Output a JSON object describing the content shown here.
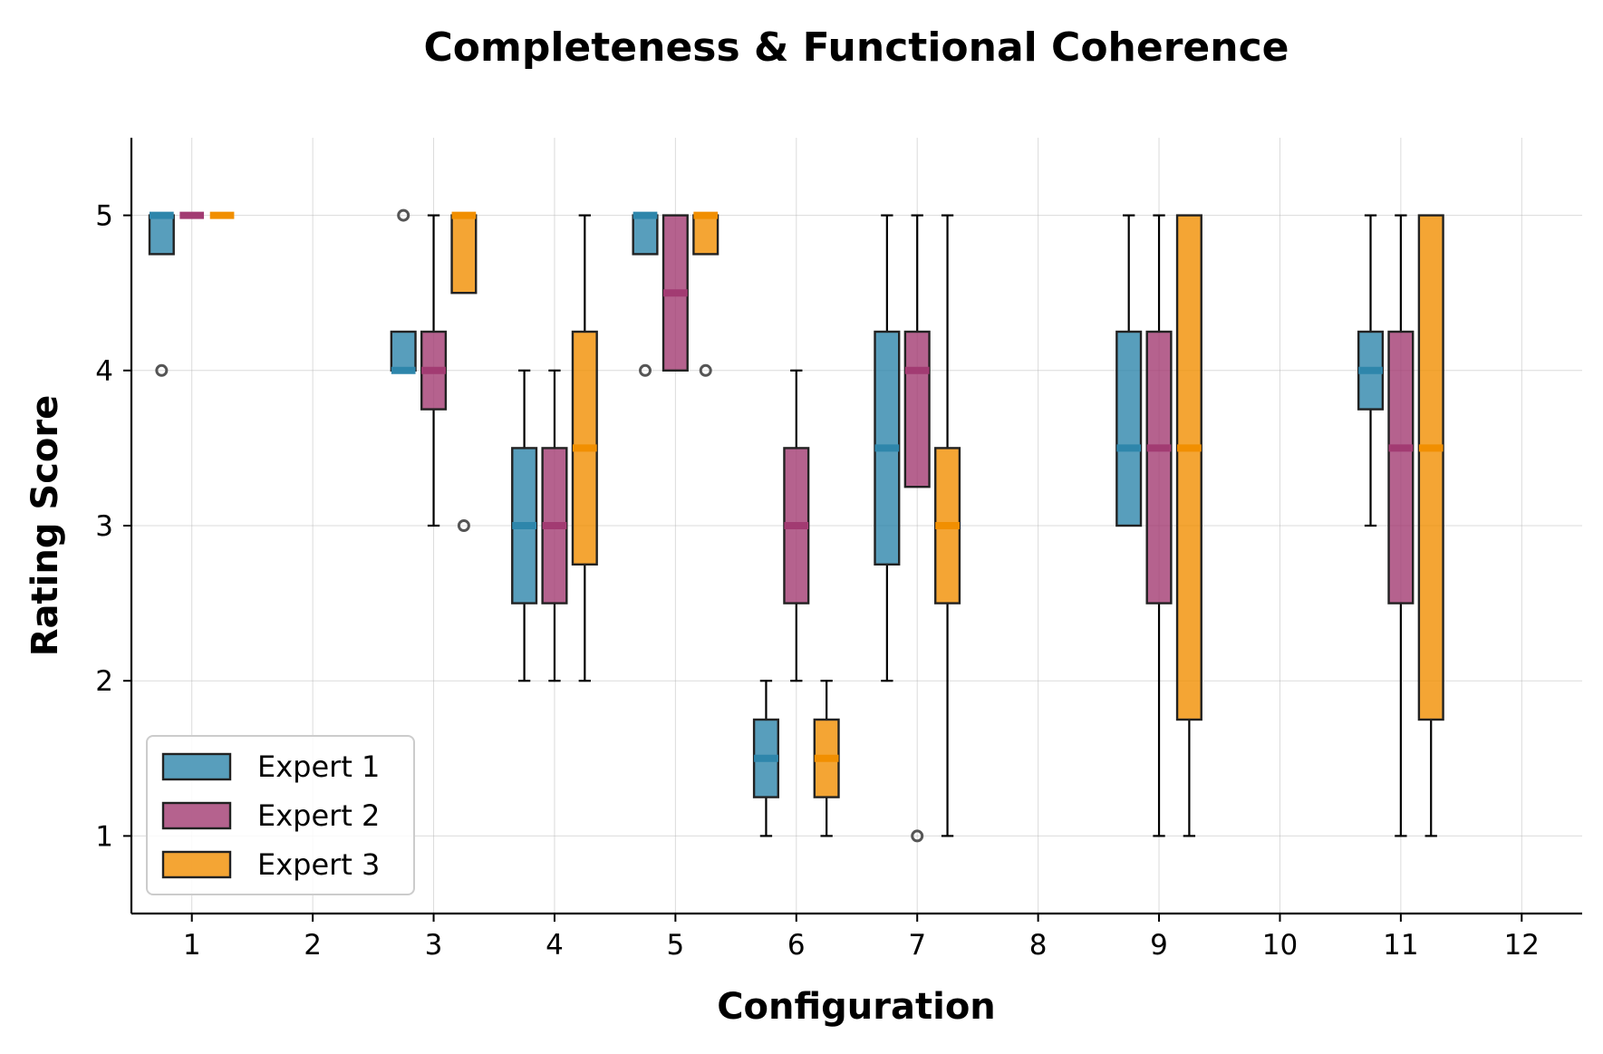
{
  "chart_data": {
    "type": "boxplot",
    "title": "Completeness & Functional Coherence",
    "xlabel": "Configuration",
    "ylabel": "Rating Score",
    "categories": [
      "1",
      "2",
      "3",
      "4",
      "5",
      "6",
      "7",
      "8",
      "9",
      "10",
      "11",
      "12"
    ],
    "x_ticks": [
      1,
      2,
      3,
      4,
      5,
      6,
      7,
      8,
      9,
      10,
      11,
      12
    ],
    "y_ticks": [
      1,
      2,
      3,
      4,
      5
    ],
    "ylim": [
      0.5,
      5.5
    ],
    "xlim": [
      0.5,
      12.5
    ],
    "grid": true,
    "legend_position": "lower-left",
    "series": [
      {
        "name": "Expert 1",
        "color": "#2E86AB",
        "median_color": "#2E86AB",
        "boxes": [
          {
            "config": 1,
            "min": 4.75,
            "q1": 4.75,
            "median": 5,
            "q3": 5,
            "max": 5,
            "fliers": [
              4
            ]
          },
          {
            "config": 3,
            "min": 4,
            "q1": 4,
            "median": 4,
            "q3": 4.25,
            "max": 4.25,
            "fliers": [
              5
            ]
          },
          {
            "config": 4,
            "min": 2,
            "q1": 2.5,
            "median": 3,
            "q3": 3.5,
            "max": 4,
            "fliers": []
          },
          {
            "config": 5,
            "min": 4.75,
            "q1": 4.75,
            "median": 5,
            "q3": 5,
            "max": 5,
            "fliers": [
              4
            ]
          },
          {
            "config": 6,
            "min": 1,
            "q1": 1.25,
            "median": 1.5,
            "q3": 1.75,
            "max": 2,
            "fliers": []
          },
          {
            "config": 7,
            "min": 2,
            "q1": 2.75,
            "median": 3.5,
            "q3": 4.25,
            "max": 5,
            "fliers": []
          },
          {
            "config": 9,
            "min": 3,
            "q1": 3,
            "median": 3.5,
            "q3": 4.25,
            "max": 5,
            "fliers": []
          },
          {
            "config": 11,
            "min": 3,
            "q1": 3.75,
            "median": 4,
            "q3": 4.25,
            "max": 5,
            "fliers": []
          }
        ]
      },
      {
        "name": "Expert 2",
        "color": "#A23B72",
        "median_color": "#A23B72",
        "boxes": [
          {
            "config": 1,
            "min": 5,
            "q1": 5,
            "median": 5,
            "q3": 5,
            "max": 5,
            "fliers": []
          },
          {
            "config": 3,
            "min": 3,
            "q1": 3.75,
            "median": 4,
            "q3": 4.25,
            "max": 5,
            "fliers": []
          },
          {
            "config": 4,
            "min": 2,
            "q1": 2.5,
            "median": 3,
            "q3": 3.5,
            "max": 4,
            "fliers": []
          },
          {
            "config": 5,
            "min": 4,
            "q1": 4,
            "median": 4.5,
            "q3": 5,
            "max": 5,
            "fliers": []
          },
          {
            "config": 6,
            "min": 2,
            "q1": 2.5,
            "median": 3,
            "q3": 3.5,
            "max": 4,
            "fliers": []
          },
          {
            "config": 7,
            "min": 3.25,
            "q1": 3.25,
            "median": 4,
            "q3": 4.25,
            "max": 5,
            "fliers": [
              1
            ]
          },
          {
            "config": 9,
            "min": 1,
            "q1": 2.5,
            "median": 3.5,
            "q3": 4.25,
            "max": 5,
            "fliers": []
          },
          {
            "config": 11,
            "min": 1,
            "q1": 2.5,
            "median": 3.5,
            "q3": 4.25,
            "max": 5,
            "fliers": []
          }
        ]
      },
      {
        "name": "Expert 3",
        "color": "#F18F01",
        "median_color": "#F18F01",
        "boxes": [
          {
            "config": 1,
            "min": 5,
            "q1": 5,
            "median": 5,
            "q3": 5,
            "max": 5,
            "fliers": []
          },
          {
            "config": 3,
            "min": 4.5,
            "q1": 4.5,
            "median": 5,
            "q3": 5,
            "max": 5,
            "fliers": [
              3
            ]
          },
          {
            "config": 4,
            "min": 2,
            "q1": 2.75,
            "median": 3.5,
            "q3": 4.25,
            "max": 5,
            "fliers": []
          },
          {
            "config": 5,
            "min": 4.75,
            "q1": 4.75,
            "median": 5,
            "q3": 5,
            "max": 5,
            "fliers": [
              4
            ]
          },
          {
            "config": 6,
            "min": 1,
            "q1": 1.25,
            "median": 1.5,
            "q3": 1.75,
            "max": 2,
            "fliers": []
          },
          {
            "config": 7,
            "min": 1,
            "q1": 2.5,
            "median": 3,
            "q3": 3.5,
            "max": 5,
            "fliers": []
          },
          {
            "config": 9,
            "min": 1,
            "q1": 1.75,
            "median": 3.5,
            "q3": 5,
            "max": 5,
            "fliers": []
          },
          {
            "config": 11,
            "min": 1,
            "q1": 1.75,
            "median": 3.5,
            "q3": 5,
            "max": 5,
            "fliers": []
          }
        ]
      }
    ]
  }
}
